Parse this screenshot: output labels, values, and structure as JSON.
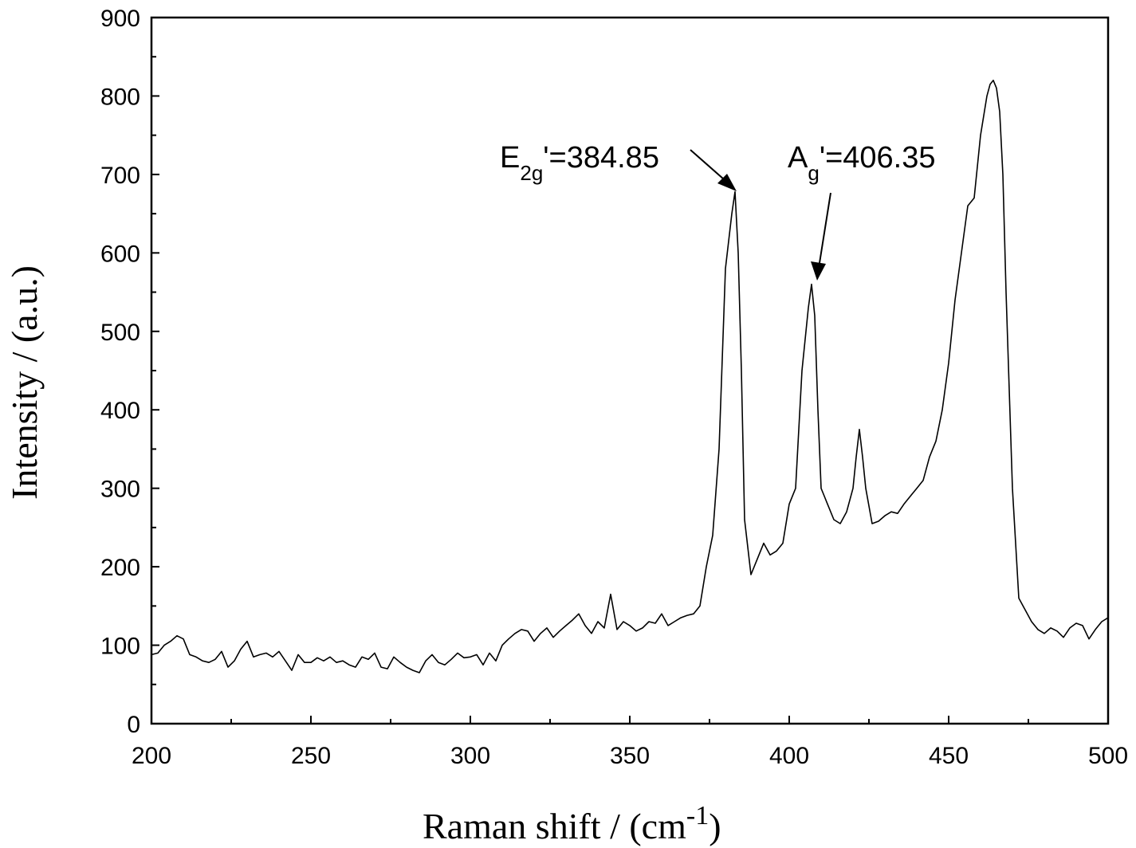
{
  "chart_data": {
    "type": "line",
    "xlabel": "Raman shift / (cm",
    "xlabel_sup": "-1",
    "xlabel_close": ")",
    "ylabel": "Intensity / (a.u.)",
    "xlim": [
      200,
      500
    ],
    "ylim": [
      0,
      900
    ],
    "xticks": [
      200,
      250,
      300,
      350,
      400,
      450,
      500
    ],
    "yticks": [
      0,
      100,
      200,
      300,
      400,
      500,
      600,
      700,
      800,
      900
    ],
    "annotations": [
      {
        "main": "E",
        "sub": "2g",
        "rest": "'=384.85",
        "peak_x": 384.5,
        "peak_y": 678
      },
      {
        "main": "A",
        "sub": "g",
        "rest": "'=406.35",
        "peak_x": 408.5,
        "peak_y": 560
      }
    ],
    "grid": false,
    "series": [
      {
        "color": "#000000",
        "x": [
          200,
          202,
          204,
          206,
          208,
          210,
          212,
          214,
          216,
          218,
          220,
          222,
          224,
          226,
          228,
          230,
          232,
          234,
          236,
          238,
          240,
          242,
          244,
          246,
          248,
          250,
          252,
          254,
          256,
          258,
          260,
          262,
          264,
          266,
          268,
          270,
          272,
          274,
          276,
          278,
          280,
          282,
          284,
          286,
          288,
          290,
          292,
          294,
          296,
          298,
          300,
          302,
          304,
          306,
          308,
          310,
          312,
          314,
          316,
          318,
          320,
          322,
          324,
          326,
          328,
          330,
          332,
          334,
          336,
          338,
          340,
          342,
          344,
          346,
          348,
          350,
          352,
          354,
          356,
          358,
          360,
          362,
          364,
          366,
          368,
          370,
          372,
          374,
          376,
          378,
          380,
          382,
          383,
          384,
          385,
          386,
          388,
          390,
          392,
          394,
          396,
          398,
          400,
          402,
          404,
          406,
          407,
          408,
          409,
          410,
          411,
          412,
          414,
          416,
          418,
          420,
          421,
          422,
          423,
          424,
          426,
          428,
          430,
          432,
          434,
          436,
          438,
          440,
          442,
          444,
          446,
          448,
          450,
          452,
          454,
          456,
          458,
          460,
          462,
          463,
          464,
          465,
          466,
          467,
          468,
          470,
          472,
          474,
          476,
          478,
          480,
          482,
          484,
          486,
          488,
          490,
          492,
          494,
          496,
          498,
          500
        ],
        "y": [
          88,
          90,
          100,
          105,
          112,
          108,
          88,
          85,
          80,
          78,
          82,
          92,
          72,
          80,
          95,
          105,
          85,
          88,
          90,
          85,
          92,
          80,
          68,
          88,
          78,
          78,
          84,
          80,
          85,
          78,
          80,
          75,
          72,
          85,
          82,
          90,
          72,
          70,
          85,
          78,
          72,
          68,
          65,
          80,
          88,
          78,
          75,
          82,
          90,
          84,
          85,
          88,
          75,
          90,
          80,
          100,
          108,
          115,
          120,
          118,
          105,
          115,
          122,
          110,
          118,
          125,
          132,
          140,
          125,
          115,
          130,
          122,
          165,
          120,
          130,
          125,
          118,
          122,
          130,
          128,
          140,
          125,
          130,
          135,
          138,
          140,
          150,
          200,
          240,
          350,
          580,
          650,
          678,
          600,
          450,
          260,
          190,
          210,
          230,
          215,
          220,
          230,
          280,
          300,
          450,
          530,
          560,
          520,
          400,
          300,
          290,
          280,
          260,
          255,
          270,
          300,
          340,
          375,
          340,
          300,
          255,
          258,
          265,
          270,
          268,
          280,
          290,
          300,
          310,
          340,
          360,
          400,
          460,
          540,
          600,
          660,
          670,
          750,
          800,
          815,
          820,
          810,
          780,
          700,
          550,
          300,
          160,
          145,
          130,
          120,
          115,
          122,
          118,
          110,
          122,
          128,
          125,
          108,
          120,
          130,
          135
        ]
      }
    ]
  }
}
